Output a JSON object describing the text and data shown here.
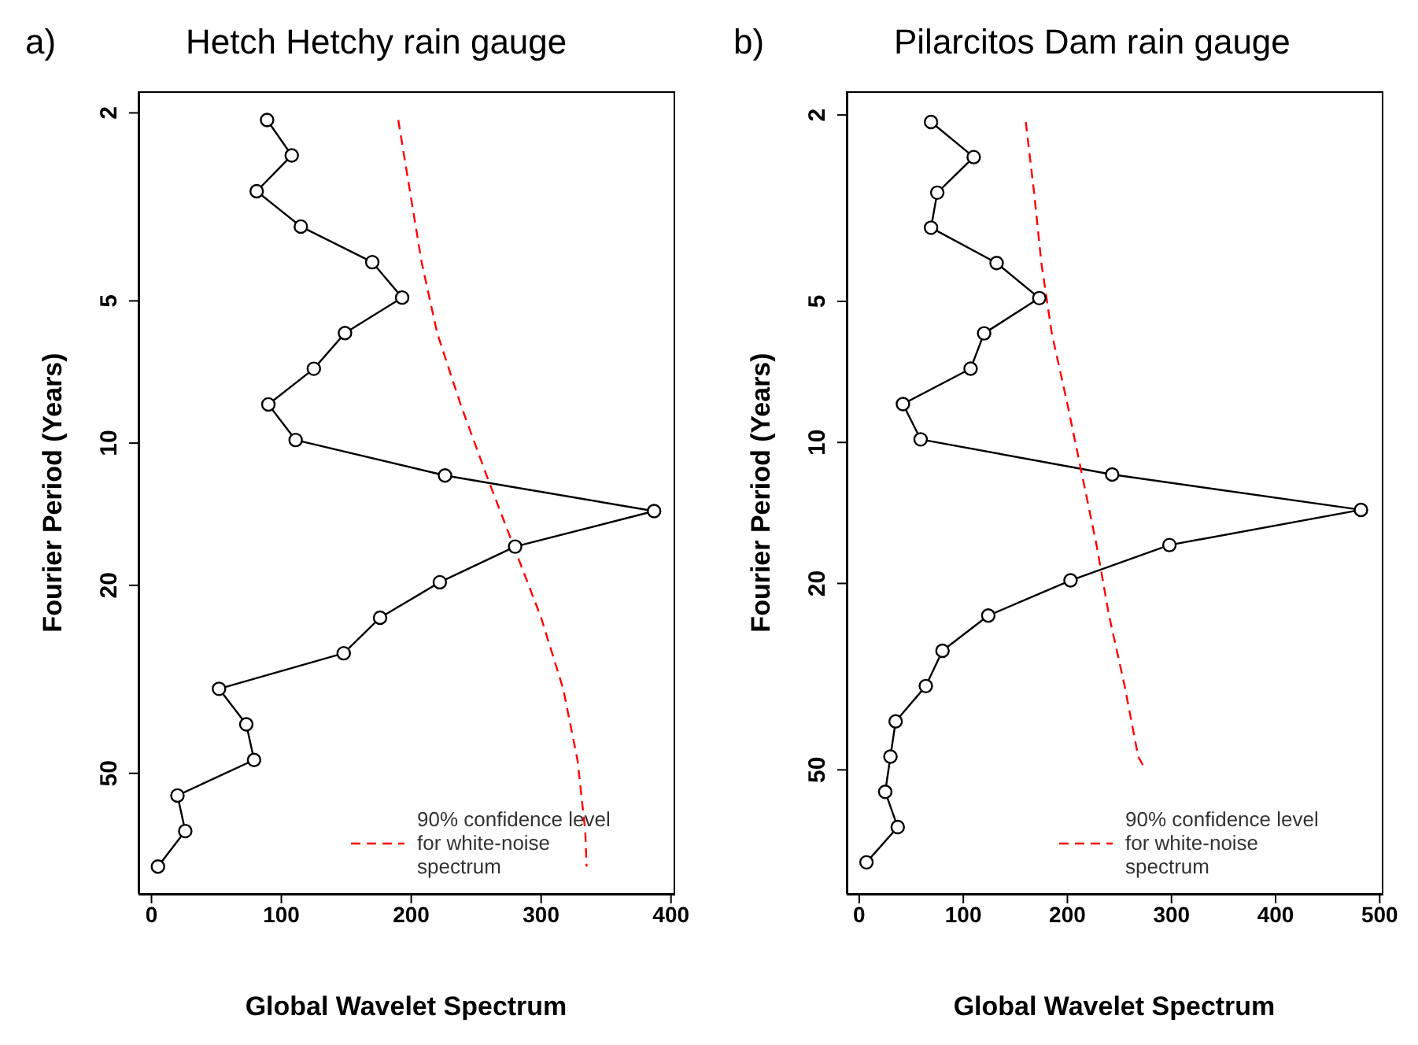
{
  "chart_data": [
    {
      "type": "line",
      "title": "Hetch Hetchy rain gauge",
      "annotations": [
        "a)"
      ],
      "xlabel": "Global Wavelet Spectrum",
      "ylabel": "Fourier Period (Years)",
      "log": "y",
      "grid": false,
      "legend": "bottom right",
      "xlim": [
        -10,
        402
      ],
      "xticks": [
        0,
        100,
        200,
        300,
        400
      ],
      "ylim": [
        90,
        1.8
      ],
      "yticks": [
        2,
        5,
        10,
        20,
        50
      ],
      "series": [
        {
          "color": "#000000",
          "marker": "circle",
          "line_style": "solid",
          "x": [
            89,
            108,
            81,
            115,
            170,
            193,
            149,
            125,
            90,
            111,
            226,
            387,
            280,
            222,
            176,
            148,
            52,
            73,
            79,
            20,
            26,
            5
          ],
          "values": [
            2.07,
            2.46,
            2.93,
            3.48,
            4.14,
            4.92,
            5.85,
            6.96,
            8.28,
            9.85,
            11.71,
            13.93,
            16.56,
            19.7,
            23.42,
            27.85,
            33.12,
            39.39,
            46.84,
            55.7,
            66.24,
            78.77
          ]
        },
        {
          "name": "90% confidence level for white-noise spectrum",
          "color": "#ff0000",
          "marker": "none",
          "line_style": "dashed",
          "x": [
            190,
            199,
            208,
            220,
            238,
            258,
            279,
            300,
            317,
            328,
            334,
            335
          ],
          "values": [
            2.07,
            2.93,
            4.14,
            5.85,
            8.28,
            11.71,
            16.56,
            23.42,
            33.12,
            46.84,
            66.24,
            78.77
          ]
        }
      ]
    },
    {
      "type": "line",
      "title": "Pilarcitos Dam rain gauge",
      "annotations": [
        "b)"
      ],
      "xlabel": "Global Wavelet Spectrum",
      "ylabel": "Fourier Period (Years)",
      "log": "y",
      "grid": false,
      "legend": "bottom right",
      "xlim": [
        -12,
        502
      ],
      "xticks": [
        0,
        100,
        200,
        300,
        400,
        500
      ],
      "ylim": [
        92,
        1.78
      ],
      "yticks": [
        2,
        5,
        10,
        20,
        50
      ],
      "series": [
        {
          "color": "#000000",
          "marker": "circle",
          "line_style": "solid",
          "x": [
            69,
            110,
            75,
            69,
            132,
            173,
            120,
            107,
            42,
            59,
            243,
            482,
            298,
            203,
            124,
            80,
            64,
            35,
            30,
            25,
            37,
            7
          ],
          "values": [
            2.07,
            2.46,
            2.93,
            3.48,
            4.14,
            4.92,
            5.85,
            6.96,
            8.28,
            9.85,
            11.71,
            13.93,
            16.56,
            19.7,
            23.42,
            27.85,
            33.12,
            39.39,
            46.84,
            55.7,
            66.24,
            78.77
          ]
        },
        {
          "name": "90% confidence level for white-noise spectrum",
          "color": "#ff0000",
          "marker": "none",
          "line_style": "dashed",
          "x": [
            160,
            168,
            175,
            185,
            200,
            214,
            228,
            240,
            255,
            268,
            275
          ],
          "values": [
            2.07,
            2.93,
            4.14,
            5.85,
            8.28,
            11.71,
            16.56,
            23.42,
            33.12,
            46.84,
            50
          ]
        }
      ]
    }
  ]
}
